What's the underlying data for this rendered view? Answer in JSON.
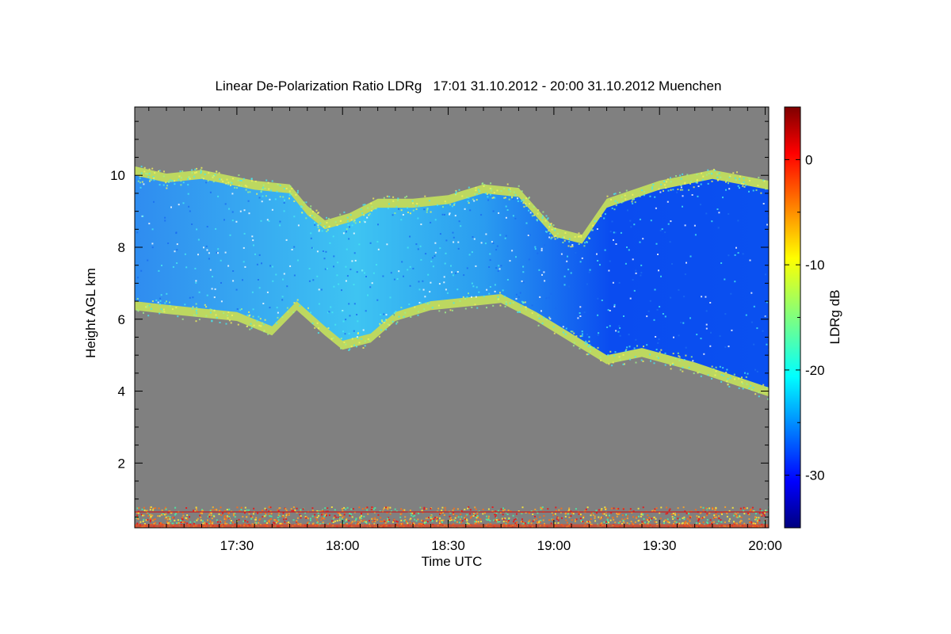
{
  "chart_data": {
    "type": "heatmap",
    "title": "Linear De-Polarization Ratio LDRg   17:01 31.10.2012 - 20:00 31.10.2012 Muenchen",
    "xlabel": "Time UTC",
    "ylabel": "Height AGL km",
    "colorbar_label": "LDRg dB",
    "x_range": [
      "17:01",
      "20:01"
    ],
    "y_range_km": [
      0.2,
      11.9
    ],
    "x_ticks": [
      {
        "label": "17:30",
        "minutes": 30
      },
      {
        "label": "18:00",
        "minutes": 60
      },
      {
        "label": "18:30",
        "minutes": 90
      },
      {
        "label": "19:00",
        "minutes": 120
      },
      {
        "label": "19:30",
        "minutes": 150
      },
      {
        "label": "20:00",
        "minutes": 180
      }
    ],
    "y_ticks": [
      {
        "label": "2",
        "value": 2
      },
      {
        "label": "4",
        "value": 4
      },
      {
        "label": "6",
        "value": 6
      },
      {
        "label": "8",
        "value": 8
      },
      {
        "label": "10",
        "value": 10
      }
    ],
    "colorbar_range_db": [
      -35,
      5
    ],
    "colorbar_ticks": [
      {
        "label": "0",
        "value": 0
      },
      {
        "label": "-10",
        "value": -10
      },
      {
        "label": "-20",
        "value": -20
      },
      {
        "label": "-30",
        "value": -30
      }
    ],
    "no_data_color": "#808080",
    "cloud_layer": {
      "description_values": "cirrus cloud layer, top approx 10 km, base descending from approx 6.5 km at 17:01 to approx 4.1 km at 20:00",
      "typical_ldr_db": -25,
      "edge_ldr_db": -12
    },
    "boundary_layer": {
      "top_km": 0.6,
      "typical_ldr_db": -5
    }
  }
}
